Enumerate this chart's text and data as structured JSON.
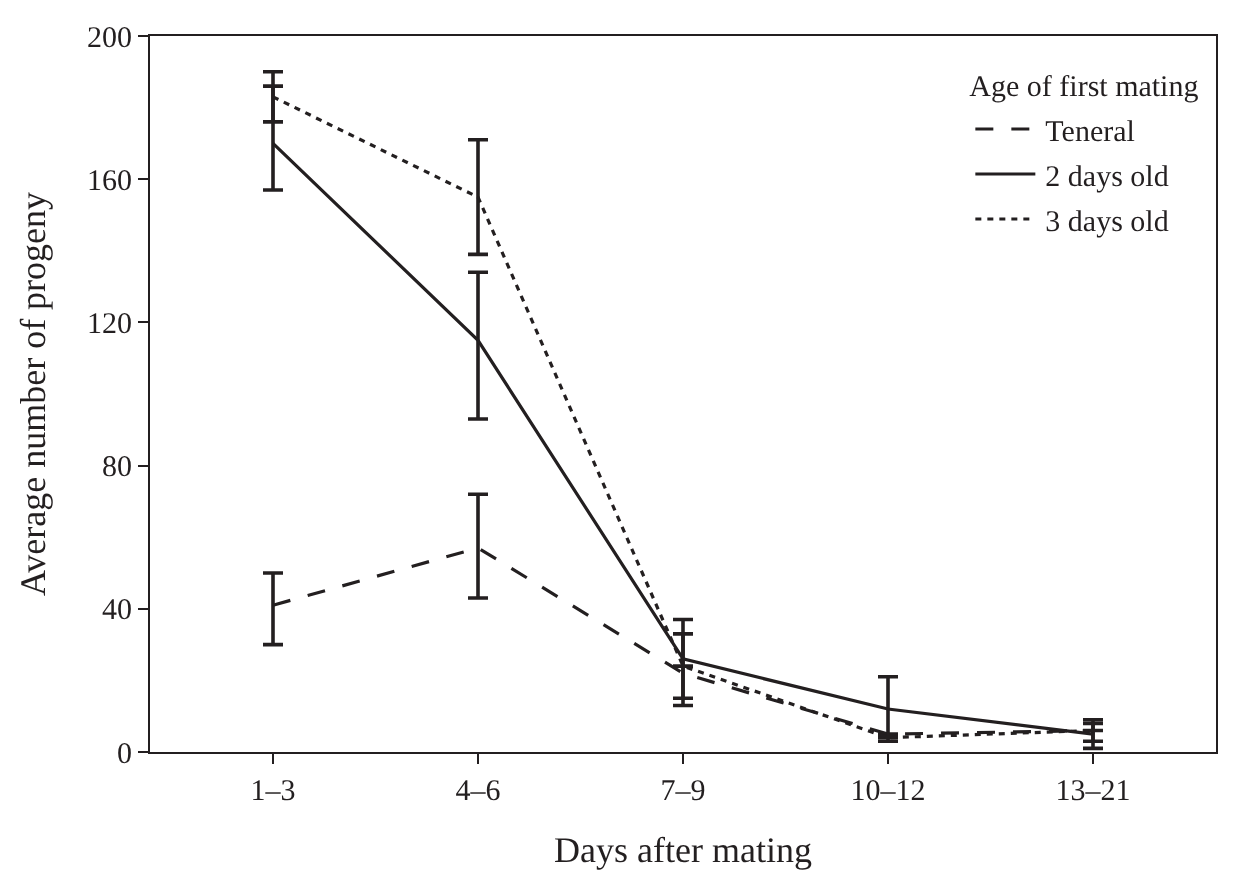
{
  "chart_data": {
    "type": "line",
    "xlabel": "Days after mating",
    "ylabel": "Average number of progeny",
    "categories": [
      "1–3",
      "4–6",
      "7–9",
      "10–12",
      "13–21"
    ],
    "ylim": [
      0,
      200
    ],
    "yticks": [
      0,
      40,
      80,
      120,
      160,
      200
    ],
    "legend": "top right",
    "legend_title": "Age of first mating",
    "marker": "none",
    "series": [
      {
        "name": "Teneral",
        "color": "#231f20",
        "line_style": "dashed",
        "values": [
          41,
          57,
          22,
          5,
          6
        ],
        "errors": [
          [
            30,
            50
          ],
          [
            43,
            72
          ],
          [
            13,
            33
          ],
          null,
          [
            3,
            8
          ]
        ]
      },
      {
        "name": "2 days old",
        "color": "#231f20",
        "line_style": "solid",
        "values": [
          170,
          115,
          26,
          12,
          5
        ],
        "errors": [
          [
            157,
            186
          ],
          [
            93,
            134
          ],
          [
            15,
            37
          ],
          [
            3,
            21
          ],
          [
            1,
            9
          ]
        ]
      },
      {
        "name": "3 days old",
        "color": "#231f20",
        "line_style": "dotted",
        "values": [
          183,
          155,
          24,
          4,
          6
        ],
        "errors": [
          [
            176,
            190
          ],
          [
            139,
            171
          ],
          null,
          null,
          null
        ]
      }
    ]
  }
}
